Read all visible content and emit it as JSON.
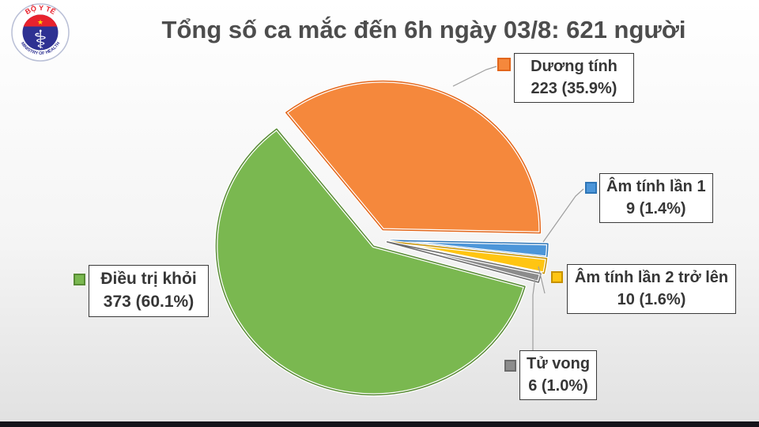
{
  "window": {
    "footer_bar_color": "#14141a"
  },
  "logo": {
    "ring_top_text": "BỘ Y TẾ",
    "ring_bottom_text": "MINISTRY OF HEALTH",
    "star": "★",
    "rod_glyph": "⚕"
  },
  "title": "Tổng số ca mắc đến 6h ngày 03/8: 621 người",
  "chart_data": {
    "type": "pie",
    "title": "Tổng số ca mắc đến 6h ngày 03/8: 621 người",
    "total": 621,
    "total_unit": "người",
    "legend_position": "callout-labels",
    "exploded": true,
    "slices": [
      {
        "label": "Dương tính",
        "value": 223,
        "pct": 35.9,
        "display": "223 (35.9%)",
        "color": "#F5883C",
        "edge": "#E2661B"
      },
      {
        "label": "Âm tính lần 1",
        "value": 9,
        "pct": 1.4,
        "display": "9 (1.4%)",
        "color": "#4D96D9",
        "edge": "#2E75B6"
      },
      {
        "label": "Âm tính lần 2 trở lên",
        "value": 10,
        "pct": 1.6,
        "display": "10 (1.6%)",
        "color": "#FFC512",
        "edge": "#C79100"
      },
      {
        "label": "Tử vong",
        "value": 6,
        "pct": 1.0,
        "display": "6 (1.0%)",
        "color": "#8C8C8C",
        "edge": "#6B6B6B"
      },
      {
        "label": "Điều trị khỏi",
        "value": 373,
        "pct": 60.1,
        "display": "373 (60.1%)",
        "color": "#7AB850",
        "edge": "#588B35"
      }
    ]
  }
}
